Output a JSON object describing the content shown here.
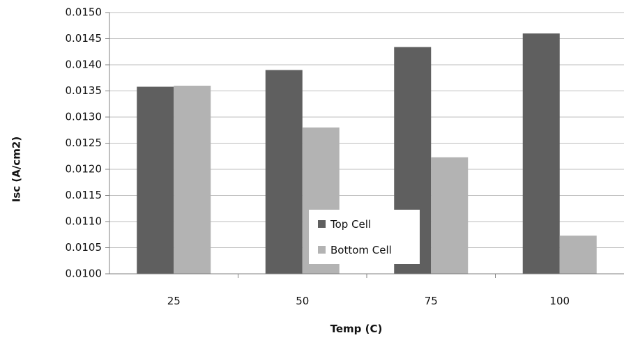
{
  "chart_data": {
    "type": "bar",
    "title": "",
    "xlabel": "Temp (C)",
    "ylabel": "Isc (A/cm2)",
    "categories": [
      "25",
      "50",
      "75",
      "100"
    ],
    "series": [
      {
        "name": "Top Cell",
        "values": [
          0.01358,
          0.0139,
          0.01434,
          0.0146
        ],
        "color": "#5f5f5f"
      },
      {
        "name": "Bottom Cell",
        "values": [
          0.0136,
          0.0128,
          0.01223,
          0.01073
        ],
        "color": "#b3b3b3"
      }
    ],
    "ylim": [
      0.01,
      0.015
    ],
    "yticks": [
      "0.0100",
      "0.0105",
      "0.0110",
      "0.0115",
      "0.0120",
      "0.0125",
      "0.0130",
      "0.0135",
      "0.0140",
      "0.0145",
      "0.0150"
    ],
    "grid": true,
    "legend": "center, inside plot area"
  }
}
